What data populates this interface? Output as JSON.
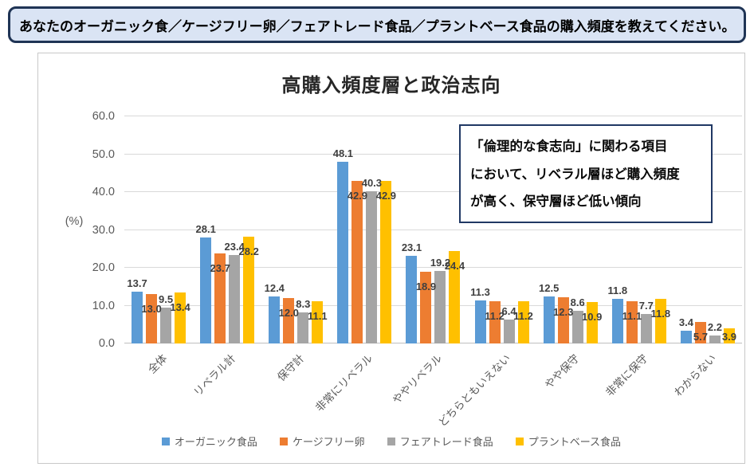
{
  "banner": {
    "text": "あなたのオーガニック食／ケージフリー卵／フェアトレード食品／プラントベース食品の購入頻度を教えてください。",
    "bg_color": "#DAE4F4",
    "border_color": "#1F3455"
  },
  "chart": {
    "title": "高購入頻度層と政治志向",
    "y_axis_unit": "(%)"
  },
  "annotation": {
    "lines": [
      "「倫理的な食志向」に関わる項目",
      "において、リベラル層ほど購入頻度",
      "が高く、保守層ほど低い傾向"
    ],
    "border_color": "#203864"
  },
  "chart_data": {
    "type": "bar",
    "title": "高購入頻度層と政治志向",
    "xlabel": "",
    "ylabel": "(%)",
    "ylim": [
      0,
      60
    ],
    "ytick_step": 10,
    "ytick_labels": [
      "0.0",
      "10.0",
      "20.0",
      "30.0",
      "40.0",
      "50.0",
      "60.0"
    ],
    "grid": true,
    "legend_position": "bottom",
    "data_label_format": "one_decimal",
    "categories": [
      "全体",
      "リベラル計",
      "保守計",
      "非常にリベラル",
      "ややリベラル",
      "どちらともいえない",
      "やや保守",
      "非常に保守",
      "わからない"
    ],
    "series": [
      {
        "name": "オーガニック食品",
        "color": "#5B9BD5",
        "values": [
          13.7,
          28.1,
          12.4,
          48.1,
          23.1,
          11.3,
          12.5,
          11.8,
          3.4
        ]
      },
      {
        "name": "ケージフリー卵",
        "color": "#ED7D31",
        "values": [
          13.0,
          23.7,
          12.0,
          42.9,
          18.9,
          11.2,
          12.3,
          11.1,
          5.7
        ]
      },
      {
        "name": "フェアトレード食品",
        "color": "#A5A5A5",
        "values": [
          9.5,
          23.4,
          8.3,
          40.3,
          19.2,
          6.4,
          8.6,
          7.7,
          2.2
        ]
      },
      {
        "name": "プラントベース食品",
        "color": "#FFC000",
        "values": [
          13.4,
          28.2,
          11.1,
          42.9,
          24.4,
          11.2,
          10.9,
          11.8,
          3.9
        ]
      }
    ]
  }
}
